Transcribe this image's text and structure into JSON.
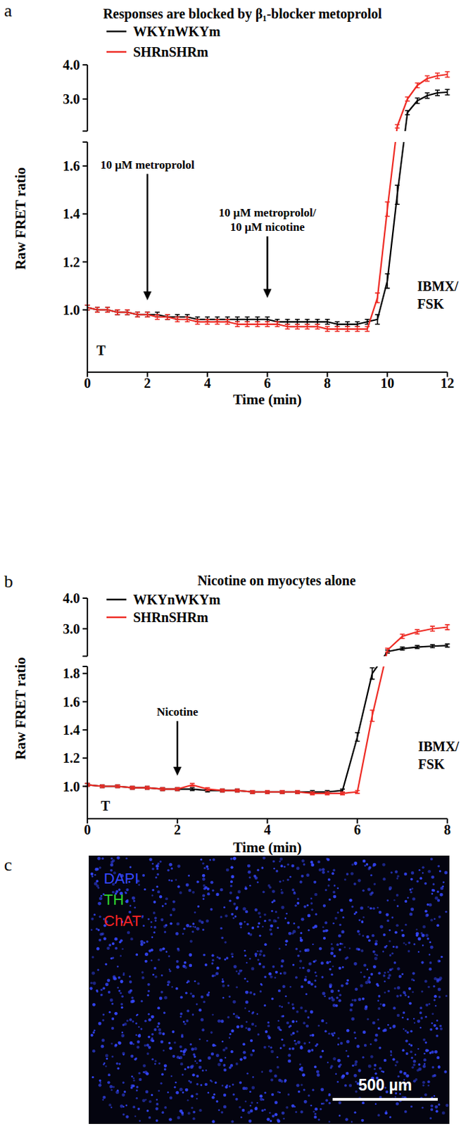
{
  "chart_data": [
    {
      "type": "line",
      "panel_label": "a",
      "title": "Responses are blocked by β₁-blocker metoprolol",
      "xlabel": "Time (min)",
      "ylabel": "Raw FRET ratio",
      "xlim": [
        0,
        12
      ],
      "xticks": [
        0,
        2,
        4,
        6,
        8,
        10,
        12
      ],
      "ylim": [
        0.74,
        4.0
      ],
      "ybreak": [
        1.7,
        2.06
      ],
      "yticks": [
        {
          "value": 1.0,
          "label": "1.0"
        },
        1.2,
        1.4,
        1.6,
        {
          "value": 3.0,
          "label": "3.0"
        },
        {
          "value": 4.0,
          "label": "4.0"
        }
      ],
      "legend": "upper left",
      "x": [
        0,
        0.33,
        0.67,
        1,
        1.33,
        1.67,
        2,
        2.33,
        2.67,
        3,
        3.33,
        3.67,
        4,
        4.33,
        4.67,
        5,
        5.33,
        5.67,
        6,
        6.33,
        6.67,
        7,
        7.33,
        7.67,
        8,
        8.33,
        8.67,
        9,
        9.33,
        9.67,
        10,
        10.33,
        10.67,
        11,
        11.33,
        11.67,
        12
      ],
      "series": [
        {
          "name": "WKYnWKYm",
          "color": "#000000",
          "values": [
            1.01,
            1.0,
            1.0,
            0.99,
            0.99,
            0.98,
            0.98,
            0.98,
            0.97,
            0.97,
            0.97,
            0.96,
            0.96,
            0.96,
            0.96,
            0.96,
            0.96,
            0.96,
            0.96,
            0.95,
            0.95,
            0.95,
            0.95,
            0.95,
            0.95,
            0.94,
            0.94,
            0.94,
            0.95,
            0.96,
            1.12,
            1.48,
            2.6,
            2.95,
            3.1,
            3.18,
            3.2
          ],
          "errors": [
            0.01,
            0.01,
            0.01,
            0.01,
            0.01,
            0.01,
            0.01,
            0.01,
            0.01,
            0.01,
            0.01,
            0.01,
            0.01,
            0.01,
            0.01,
            0.01,
            0.01,
            0.01,
            0.01,
            0.01,
            0.01,
            0.01,
            0.01,
            0.01,
            0.01,
            0.01,
            0.01,
            0.01,
            0.01,
            0.02,
            0.03,
            0.04,
            0.06,
            0.08,
            0.08,
            0.08,
            0.08
          ]
        },
        {
          "name": "SHRnSHRm",
          "color": "#ee2b24",
          "values": [
            1.01,
            1.0,
            1.0,
            0.99,
            0.99,
            0.98,
            0.98,
            0.97,
            0.97,
            0.96,
            0.96,
            0.95,
            0.95,
            0.95,
            0.95,
            0.94,
            0.94,
            0.94,
            0.94,
            0.94,
            0.93,
            0.93,
            0.93,
            0.93,
            0.92,
            0.92,
            0.92,
            0.92,
            0.92,
            1.05,
            1.42,
            2.2,
            3.0,
            3.4,
            3.6,
            3.68,
            3.72
          ],
          "errors": [
            0.01,
            0.01,
            0.01,
            0.01,
            0.01,
            0.01,
            0.01,
            0.01,
            0.01,
            0.01,
            0.01,
            0.01,
            0.01,
            0.01,
            0.01,
            0.01,
            0.01,
            0.01,
            0.01,
            0.01,
            0.01,
            0.01,
            0.01,
            0.01,
            0.01,
            0.01,
            0.01,
            0.01,
            0.01,
            0.02,
            0.03,
            0.05,
            0.06,
            0.07,
            0.08,
            0.08,
            0.08
          ]
        }
      ],
      "arrows": [
        {
          "text": [
            "10 µM metroprolol"
          ],
          "x": 2,
          "y": 1.04
        },
        {
          "text": [
            "10 µM metroprolol/",
            "10 µM nicotine"
          ],
          "x": 6,
          "y": 1.05
        }
      ],
      "notes": [
        {
          "text": [
            "T"
          ],
          "x": 0.3,
          "y": 0.81
        },
        {
          "text": [
            "IBMX/",
            "FSK"
          ],
          "x": 11.0,
          "y": 1.08
        }
      ]
    },
    {
      "type": "line",
      "panel_label": "b",
      "title": "Nicotine on myocytes alone",
      "xlabel": "Time (min)",
      "ylabel": "Raw FRET ratio",
      "xlim": [
        0,
        8
      ],
      "xticks": [
        0,
        2,
        4,
        6,
        8
      ],
      "ylim": [
        0.77,
        4.0
      ],
      "ybreak": [
        1.85,
        2.1
      ],
      "yticks": [
        {
          "value": 1.0,
          "label": "1.0"
        },
        1.2,
        1.4,
        1.6,
        1.8,
        {
          "value": 3.0,
          "label": "3.0"
        },
        {
          "value": 4.0,
          "label": "4.0"
        }
      ],
      "legend": "upper left",
      "x": [
        0,
        0.33,
        0.67,
        1,
        1.33,
        1.67,
        2,
        2.33,
        2.67,
        3,
        3.33,
        3.67,
        4,
        4.33,
        4.67,
        5,
        5.33,
        5.67,
        6,
        6.33,
        6.67,
        7,
        7.33,
        7.67,
        8
      ],
      "series": [
        {
          "name": "WKYnWKYm",
          "color": "#000000",
          "values": [
            1.01,
            1.0,
            1.0,
            0.99,
            0.99,
            0.98,
            0.98,
            0.98,
            0.97,
            0.97,
            0.97,
            0.96,
            0.96,
            0.96,
            0.96,
            0.96,
            0.96,
            0.97,
            1.35,
            1.8,
            2.25,
            2.35,
            2.4,
            2.43,
            2.45
          ],
          "errors": [
            0.01,
            0.01,
            0.01,
            0.01,
            0.01,
            0.01,
            0.01,
            0.01,
            0.01,
            0.01,
            0.01,
            0.01,
            0.01,
            0.01,
            0.01,
            0.01,
            0.01,
            0.01,
            0.03,
            0.04,
            0.05,
            0.05,
            0.05,
            0.05,
            0.05
          ]
        },
        {
          "name": "SHRnSHRm",
          "color": "#ee2b24",
          "values": [
            1.01,
            1.0,
            1.0,
            0.99,
            0.99,
            0.98,
            0.98,
            1.01,
            0.98,
            0.97,
            0.97,
            0.96,
            0.96,
            0.96,
            0.96,
            0.95,
            0.95,
            0.95,
            0.96,
            1.5,
            2.3,
            2.75,
            2.9,
            3.0,
            3.05
          ],
          "errors": [
            0.01,
            0.01,
            0.01,
            0.01,
            0.01,
            0.01,
            0.01,
            0.01,
            0.01,
            0.01,
            0.01,
            0.01,
            0.01,
            0.01,
            0.01,
            0.01,
            0.01,
            0.01,
            0.01,
            0.04,
            0.06,
            0.07,
            0.07,
            0.08,
            0.08
          ]
        }
      ],
      "arrows": [
        {
          "text": [
            "Nicotine"
          ],
          "x": 2,
          "y": 1.075
        }
      ],
      "notes": [
        {
          "text": [
            "T"
          ],
          "x": 0.3,
          "y": 0.83
        },
        {
          "text": [
            "IBMX/",
            "FSK"
          ],
          "x": 7.35,
          "y": 1.25
        }
      ]
    }
  ],
  "image_panel": {
    "panel_label": "c",
    "channels": [
      {
        "name": "DAPI",
        "color": "#3547ff"
      },
      {
        "name": "TH",
        "color": "#2fd62f"
      },
      {
        "name": "ChAT",
        "color": "#ff2424"
      }
    ],
    "scale_bar": "500 µm"
  }
}
